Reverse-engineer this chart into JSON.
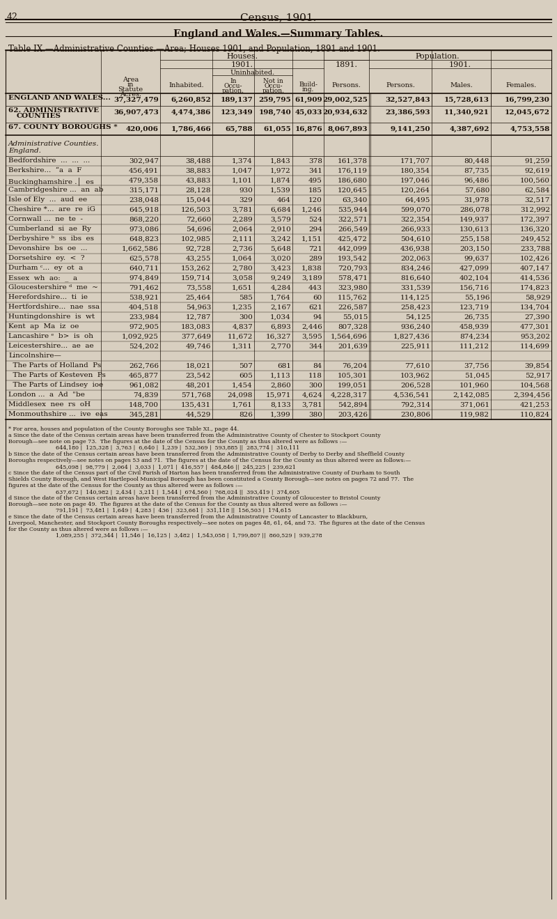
{
  "page_num": "42",
  "page_title": "Census, 1901.",
  "section_title": "ENGLAND AND WALES.—SUMMARY TABLES.",
  "table_title": "Table IX.—Administrative Counties.—Area; Houses 1901, and Population, 1891 and 1901.",
  "bg_color": "#d8cfc0",
  "text_color": "#1a1008",
  "header_rows": [
    [
      "",
      "Area in Statute Acres.",
      "Houses.",
      "",
      "",
      "",
      "",
      "Population.",
      "",
      "",
      ""
    ],
    [
      "",
      "",
      "1901.",
      "",
      "",
      "",
      "1891.",
      "1901.",
      "",
      "",
      ""
    ],
    [
      "",
      "",
      "",
      "Uninhabited.",
      "",
      "",
      "",
      "",
      "",
      "",
      ""
    ],
    [
      "",
      "",
      "Inhabited.",
      "In Occu-pation.",
      "Not in Occu-pation.",
      "Build-ing.",
      "Persons.",
      "Persons.",
      "Males.",
      "Females."
    ]
  ],
  "summary_rows": [
    [
      "ENGLAND AND WALES...",
      "37,327,479",
      "6,260,852",
      "189,137",
      "259,795",
      "61,909",
      "29,002,525",
      "32,527,843",
      "15,728,613",
      "16,799,230"
    ],
    [
      "62. ADMINISTRATIVE\nCOUNTIES",
      "36,907,473",
      "4,474,386",
      "123,349",
      "198,740",
      "45,033",
      "20,934,632",
      "23,386,593",
      "11,340,921",
      "12,045,672"
    ],
    [
      "67. COUNTY BOROUGHS *",
      "420,006",
      "1,786,466",
      "65,788",
      "61,055",
      "16,876",
      "8,067,893",
      "9,141,250",
      "4,387,692",
      "4,753,558"
    ]
  ],
  "section_header": [
    "Administrative Counties.",
    "England."
  ],
  "data_rows": [
    [
      "Bedfordshire  ...  ...  ...",
      "302,947",
      "38,488",
      "1,374",
      "1,843",
      "378",
      "161,378",
      "171,707",
      "80,448",
      "91,259"
    ],
    [
      "Berkshire...  “a  a  F",
      "456,491",
      "38,883",
      "1,047",
      "1,972",
      "341",
      "176,119",
      "180,354",
      "87,735",
      "92,619"
    ],
    [
      "Buckinghamshire .│  es",
      "479,358",
      "43,883",
      "1,101",
      "1,874",
      "495",
      "186,680",
      "197,046",
      "96,486",
      "100,560"
    ],
    [
      "Cambridgeshire ...  an  ab",
      "315,171",
      "28,128",
      "930",
      "1,539",
      "185",
      "120,645",
      "120,264",
      "57,680",
      "62,584"
    ],
    [
      "Isle of Ely  ...  aud  ee",
      "238,048",
      "15,044",
      "329",
      "464",
      "120",
      "63,340",
      "64,495",
      "31,978",
      "32,517"
    ],
    [
      "Cheshire *...  are  re  iG",
      "645,918",
      "126,503",
      "3,781",
      "6,684",
      "1,246",
      "535,944",
      "599,070",
      "286,078",
      "312,992"
    ],
    [
      "Cornwall ...  ne  te  -",
      "868,220",
      "72,660",
      "2,289",
      "3,579",
      "524",
      "322,571",
      "322,354",
      "149,937",
      "172,397"
    ],
    [
      "Cumberland  si  ae  Ry",
      "973,086",
      "54,696",
      "2,064",
      "2,910",
      "294",
      "266,549",
      "266,933",
      "130,613",
      "136,320"
    ],
    [
      "Derbyshire ᵇ  ss  ibs  es",
      "648,823",
      "102,985",
      "2,111",
      "3,242",
      "1,151",
      "425,472",
      "504,610",
      "255,158",
      "249,452"
    ],
    [
      "Devonshire  bs  oe  ...",
      "1,662,586",
      "92,728",
      "2,736",
      "5,648",
      "721",
      "442,099",
      "436,938",
      "203,150",
      "233,788"
    ],
    [
      "Dorsetshire  ey.  <  ?",
      "625,578",
      "43,255",
      "1,064",
      "3,020",
      "289",
      "193,542",
      "202,063",
      "99,637",
      "102,426"
    ],
    [
      "Durham ᶜ...  ey  ot  a",
      "640,711",
      "153,262",
      "2,780",
      "3,423",
      "1,838",
      "720,793",
      "834,246",
      "427,099",
      "407,147"
    ],
    [
      "Essex  wh  ao:  _  a",
      "974,849",
      "159,714",
      "3,058",
      "9,249",
      "3,189",
      "578,471",
      "816,640",
      "402,104",
      "414,536"
    ],
    [
      "Gloucestershire ᵈ  me  ~",
      "791,462",
      "73,558",
      "1,651",
      "4,284",
      "443",
      "323,980",
      "331,539",
      "156,716",
      "174,823"
    ],
    [
      "Herefordshire...  ti  ie",
      "538,921",
      "25,464",
      "585",
      "1,764",
      "60",
      "115,762",
      "114,125",
      "55,196",
      "58,929"
    ],
    [
      "Hertfordshire...  nae  ssa",
      "404,518",
      "54,963",
      "1,235",
      "2,167",
      "621",
      "226,587",
      "258,423",
      "123,719",
      "134,704"
    ],
    [
      "Huntingdonshire  is  wt",
      "233,984",
      "12,787",
      "300",
      "1,034",
      "94",
      "55,015",
      "54,125",
      "26,735",
      "27,390"
    ],
    [
      "Kent  ap  Ma  iz  oe",
      "972,905",
      "183,083",
      "4,837",
      "6,893",
      "2,446",
      "807,328",
      "936,240",
      "458,939",
      "477,301"
    ],
    [
      "Lancashire ᵉ  b>  is  oh",
      "1,092,925",
      "377,649",
      "11,672",
      "16,327",
      "3,595",
      "1,564,696",
      "1,827,436",
      "874,234",
      "953,202"
    ],
    [
      "Leicestershire...  ae  ae",
      "524,202",
      "49,746",
      "1,311",
      "2,770",
      "344",
      "201,639",
      "225,911",
      "111,212",
      "114,699"
    ],
    [
      "Lincolnshire—",
      "",
      "",
      "",
      "",
      "",
      "",
      "",
      "",
      ""
    ],
    [
      "  The Parts of Holland  Ps",
      "262,766",
      "18,021",
      "507",
      "681",
      "84",
      "76,204",
      "77,610",
      "37,756",
      "39,854"
    ],
    [
      "  The Parts of Kesteven  Ps",
      "465,877",
      "23,542",
      "605",
      "1,113",
      "118",
      "105,301",
      "103,962",
      "51,045",
      "52,917"
    ],
    [
      "  The Parts of Lindsey  ioe",
      "961,082",
      "48,201",
      "1,454",
      "2,860",
      "300",
      "199,051",
      "206,528",
      "101,960",
      "104,568"
    ],
    [
      "London ...  a  Ad  \"be",
      "74,839",
      "571,768",
      "24,098",
      "15,971",
      "4,624",
      "4,228,317",
      "4,536,541",
      "2,142,085",
      "2,394,456"
    ],
    [
      "Middlesex  nee  rs  oH",
      "148,700",
      "135,431",
      "1,761",
      "8,133",
      "3,781",
      "542,894",
      "792,314",
      "371,061",
      "421,253"
    ],
    [
      "Monmouthshire ...  ive  eas",
      "345,281",
      "44,529",
      "826",
      "1,399",
      "380",
      "203,426",
      "230,806",
      "119,982",
      "110,824"
    ]
  ],
  "footnotes": [
    "* For area, houses and population of the County Boroughs see Table XI., page 44.",
    "a Since the date of the Census certain areas have been transferred from the Administrative County of Chester to Stockport County",
    "Borough—see note on page 73.  The figures at the date of the Census for the County as thus altered were as follows :—",
    "644,180 |  125,328 |  3,763 |  6,640 |  1,239 |  532,369 |  593,885 ||  283,774 |  310,111",
    "b Since the date of the Census certain areas have been transferred from the Administrative County of Derby to Derby and Sheffield County",
    "Boroughs respectively—see notes on pages 53 and 71.  The figures at the date of the Census for the County as thus altered were as follows:—",
    "645,098 |  98,779 |  2,064 |  3,033 |  1,071 |  416,557 |  484,846 ||  245,225 |  239,621",
    "c Since the date of the Census part of the Civil Parish of Harton has been transferred from the Administrative County of Durham to South",
    "Shields County Borough, and West Hartlepool Municipal Borough has been constituted a County Borough—see notes on pages 72 and 77.  The",
    "figures at the date of the Census for the County as thus altered were as follows :—",
    "637,672 |  140,982 |  2,434 |  3,211 |  1,544 |  674,560 |  768,024 ||  393,419 |  374,605",
    "d Since the date of the Census certain areas have been transferred from the Administrative County of Gloucester to Bristol County",
    "Borough—see note on page 49.  The figures at the date of the Census for the County as thus altered were as follows :—",
    "791,191 |  73,481 |  1,649 |  4,283 |  436 |  323,661 |  331,118 ||  156,503 |  174,615",
    "e Since the date of the Census certain areas have been transferred from the Administrative County of Lancaster to Blackburn,",
    "Liverpool, Manchester, and Stockport County Boroughs respectively—see notes on pages 48, 61, 64, and 73.  The figures at the date of the Census",
    "for the County as thus altered were as follows :—",
    "1,089,255 |  372,344 |  11,546 |  16,125 |  3,482 |  1,543,058 |  1,799,807 ||  860,529 |  939,278"
  ]
}
